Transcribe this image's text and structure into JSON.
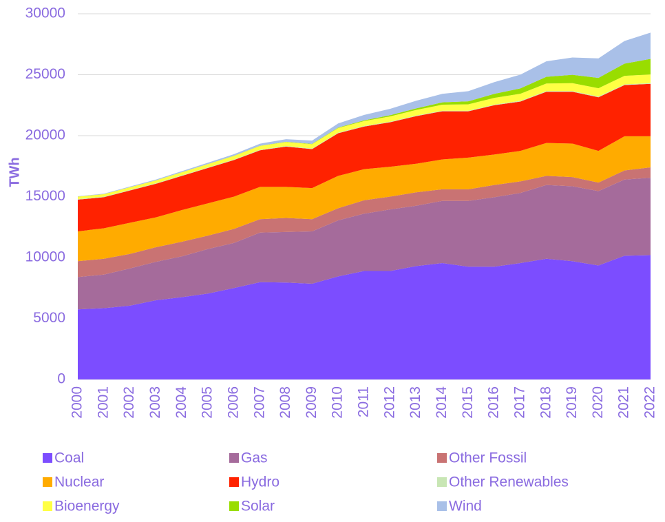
{
  "chart_data": {
    "type": "stacked_area",
    "y_label": "TWh",
    "x": [
      "2000",
      "2001",
      "2002",
      "2003",
      "2004",
      "2005",
      "2006",
      "2007",
      "2008",
      "2009",
      "2010",
      "2011",
      "2012",
      "2013",
      "2014",
      "2015",
      "2016",
      "2017",
      "2018",
      "2019",
      "2020",
      "2021",
      "2022"
    ],
    "ylim": [
      0,
      30000
    ],
    "yticks": [
      0,
      5000,
      10000,
      15000,
      20000,
      25000,
      30000
    ],
    "grid": true,
    "series": [
      {
        "name": "Coal",
        "color": "#7c4dff",
        "values": [
          5750,
          5850,
          6050,
          6500,
          6750,
          7050,
          7500,
          7980,
          7950,
          7850,
          8450,
          8900,
          8900,
          9300,
          9550,
          9250,
          9250,
          9550,
          9900,
          9700,
          9350,
          10150,
          10200
        ]
      },
      {
        "name": "Gas",
        "color": "#a56b9b",
        "values": [
          2650,
          2750,
          3050,
          3150,
          3350,
          3650,
          3700,
          4070,
          4150,
          4300,
          4600,
          4700,
          5050,
          4950,
          5100,
          5400,
          5700,
          5750,
          6050,
          6150,
          6100,
          6250,
          6350
        ]
      },
      {
        "name": "Other Fossil",
        "color": "#c97373",
        "values": [
          1300,
          1300,
          1200,
          1200,
          1200,
          1100,
          1150,
          1100,
          1150,
          1000,
          1000,
          1100,
          1050,
          1100,
          950,
          950,
          1000,
          950,
          750,
          750,
          700,
          750,
          850
        ]
      },
      {
        "name": "Nuclear",
        "color": "#ffab00",
        "values": [
          2450,
          2500,
          2550,
          2450,
          2600,
          2650,
          2650,
          2650,
          2550,
          2550,
          2650,
          2550,
          2450,
          2350,
          2450,
          2600,
          2500,
          2500,
          2700,
          2750,
          2600,
          2800,
          2550
        ]
      },
      {
        "name": "Hydro",
        "color": "#ff2200",
        "values": [
          2600,
          2550,
          2650,
          2750,
          2800,
          2900,
          3000,
          3000,
          3300,
          3200,
          3500,
          3500,
          3650,
          3900,
          3950,
          3800,
          4050,
          4050,
          4200,
          4250,
          4400,
          4200,
          4300
        ]
      },
      {
        "name": "Other Renewables",
        "color": "#c8e6b4",
        "values": [
          50,
          50,
          50,
          50,
          50,
          50,
          50,
          50,
          50,
          50,
          50,
          50,
          50,
          50,
          50,
          50,
          50,
          60,
          60,
          60,
          60,
          60,
          60
        ]
      },
      {
        "name": "Bioenergy",
        "color": "#ffff44",
        "values": [
          200,
          200,
          220,
          230,
          250,
          270,
          290,
          310,
          330,
          350,
          380,
          400,
          430,
          460,
          490,
          520,
          550,
          580,
          620,
          650,
          680,
          700,
          710
        ]
      },
      {
        "name": "Solar",
        "color": "#99dd00",
        "values": [
          1,
          2,
          3,
          5,
          7,
          9,
          12,
          15,
          20,
          30,
          35,
          60,
          100,
          130,
          190,
          250,
          330,
          440,
          550,
          680,
          850,
          1000,
          1280
        ]
      },
      {
        "name": "Wind",
        "color": "#a9c0e8",
        "values": [
          30,
          40,
          55,
          65,
          85,
          100,
          130,
          170,
          210,
          270,
          340,
          440,
          520,
          630,
          700,
          830,
          960,
          1130,
          1270,
          1420,
          1600,
          1860,
          2150
        ]
      }
    ]
  }
}
